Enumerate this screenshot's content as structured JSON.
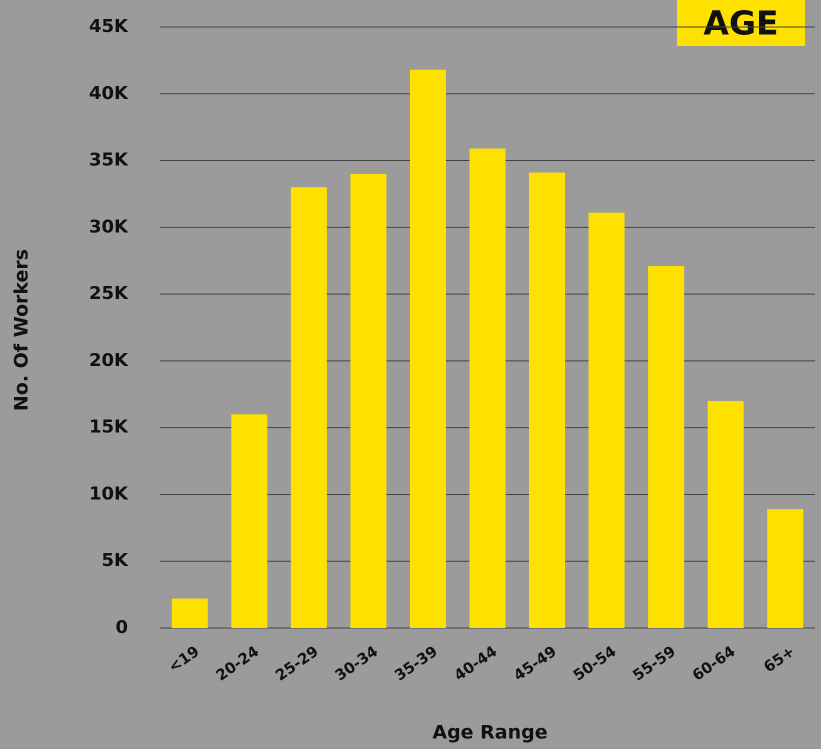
{
  "chart_data": {
    "type": "bar",
    "title": "AGE",
    "x_label": "Age Range",
    "y_label": "No. Of Workers",
    "categories": [
      "<19",
      "20-24",
      "25-29",
      "30-34",
      "35-39",
      "40-44",
      "45-49",
      "50-54",
      "55-59",
      "60-64",
      "65+"
    ],
    "values": [
      2200,
      16000,
      33000,
      34000,
      41800,
      35900,
      34100,
      31100,
      27100,
      17000,
      8900
    ],
    "color": "#ffe100",
    "ylim": [
      0,
      45000
    ],
    "yticks": [
      0,
      {
        "value": 5000,
        "label": "5K"
      },
      {
        "value": 10000,
        "label": "10K"
      },
      {
        "value": 15000,
        "label": "15K"
      },
      {
        "value": 20000,
        "label": "20K"
      },
      {
        "value": 25000,
        "label": "25K"
      },
      {
        "value": 30000,
        "label": "30K"
      },
      {
        "value": 35000,
        "label": "35K"
      },
      {
        "value": 40000,
        "label": "40K"
      },
      {
        "value": 45000,
        "label": "45K"
      }
    ],
    "grid": true
  }
}
